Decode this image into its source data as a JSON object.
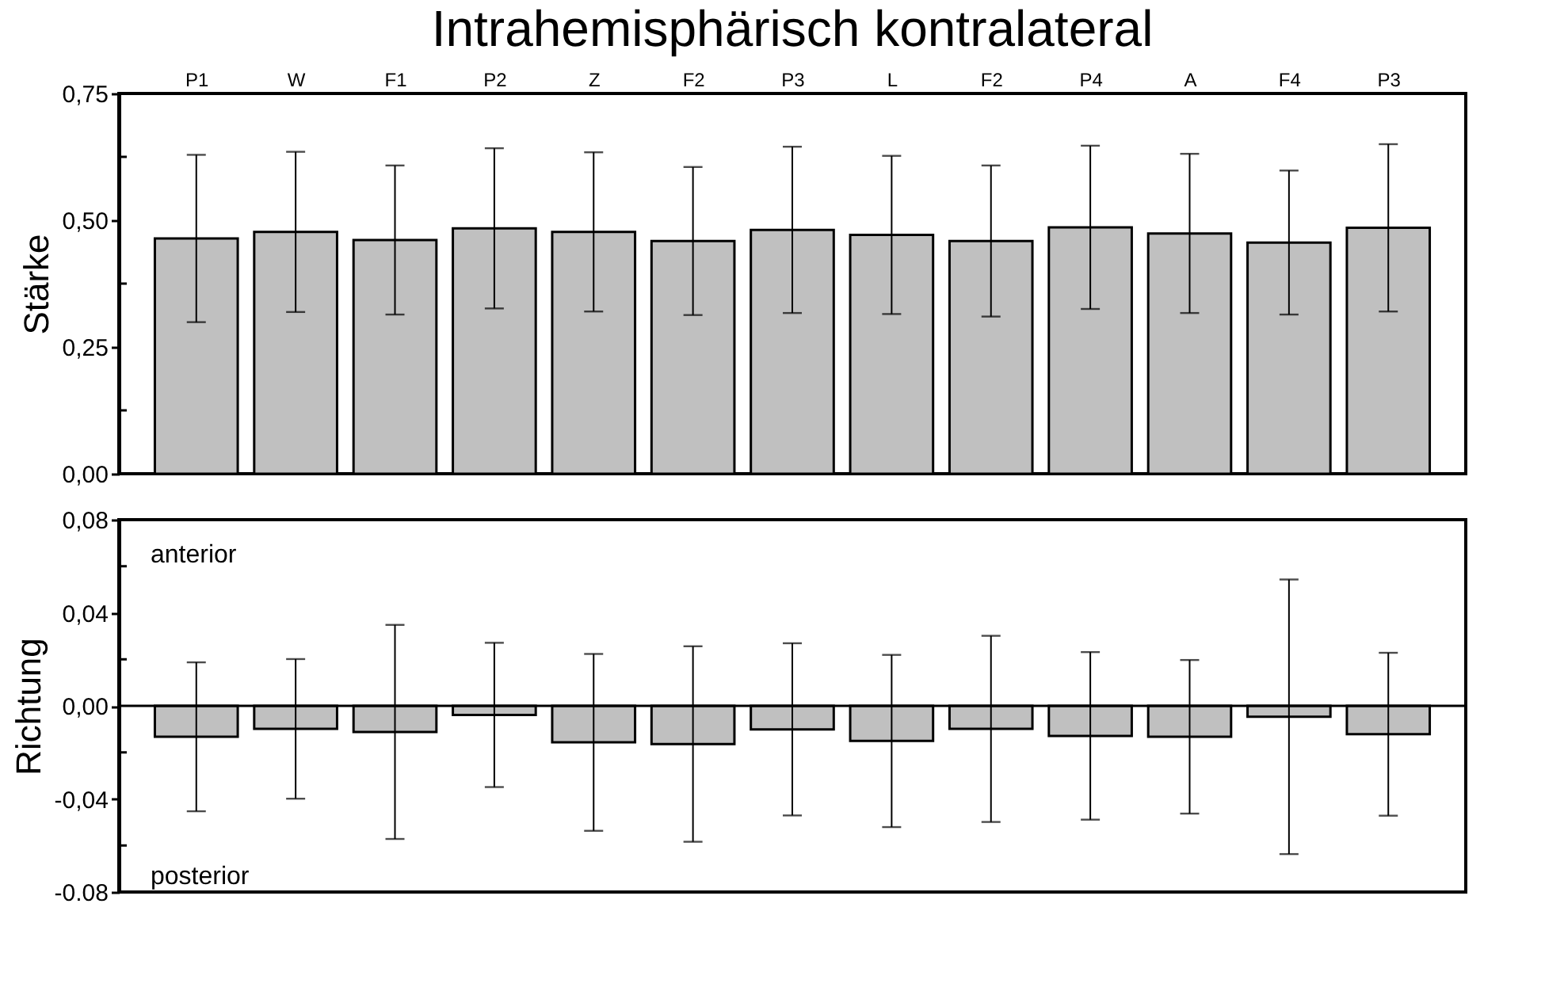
{
  "chart_data": [
    {
      "type": "bar",
      "title": "Intrahemisphärisch kontralateral",
      "ylabel": "Stärke",
      "categories": [
        "P1",
        "W",
        "F1",
        "P2",
        "Z",
        "F2",
        "P3",
        "L",
        "F2",
        "P4",
        "A",
        "F4",
        "P3"
      ],
      "series": [
        {
          "color": "#c0c0c0",
          "values": [
            0.464,
            0.477,
            0.461,
            0.484,
            0.477,
            0.459,
            0.481,
            0.471,
            0.459,
            0.486,
            0.474,
            0.456,
            0.485
          ],
          "errors": [
            0.165,
            0.158,
            0.147,
            0.158,
            0.157,
            0.146,
            0.164,
            0.156,
            0.149,
            0.161,
            0.157,
            0.142,
            0.165
          ]
        }
      ],
      "ylim": [
        0,
        0.75
      ],
      "yticks": [
        {
          "value": 0,
          "label": "0,00"
        },
        {
          "value": 0.125,
          "label": null
        },
        {
          "value": 0.25,
          "label": "0,25"
        },
        {
          "value": 0.375,
          "label": null
        },
        {
          "value": 0.5,
          "label": "0,50"
        },
        {
          "value": 0.625,
          "label": null
        },
        {
          "value": 0.75,
          "label": "0,75"
        }
      ],
      "grid": false
    },
    {
      "type": "bar",
      "ylabel": "Richtung",
      "annotations": [
        "anterior",
        "posterior"
      ],
      "categories": [
        null,
        null,
        null,
        null,
        null,
        null,
        null,
        null,
        null,
        null,
        null,
        null,
        null
      ],
      "series": [
        {
          "color": "#c0c0c0",
          "values": [
            -0.0133,
            -0.0099,
            -0.0112,
            -0.0039,
            -0.0157,
            -0.0164,
            -0.0101,
            -0.0151,
            -0.0099,
            -0.0129,
            -0.0133,
            -0.0047,
            -0.0122
          ],
          "errors": [
            0.032,
            0.03,
            0.046,
            0.031,
            0.038,
            0.042,
            0.037,
            0.037,
            0.04,
            0.036,
            0.033,
            0.059,
            0.035
          ]
        }
      ],
      "ylim": [
        -0.08,
        0.08
      ],
      "yticks": [
        {
          "value": -0.08,
          "label": "-0.08"
        },
        {
          "value": -0.06,
          "label": null
        },
        {
          "value": -0.04,
          "label": "-0,04"
        },
        {
          "value": -0.02,
          "label": null
        },
        {
          "value": 0,
          "label": "0,00"
        },
        {
          "value": 0.02,
          "label": null
        },
        {
          "value": 0.04,
          "label": "0,04"
        },
        {
          "value": 0.06,
          "label": null
        },
        {
          "value": 0.08,
          "label": "0,08"
        }
      ],
      "tick_labels": "y",
      "grid": false
    }
  ]
}
